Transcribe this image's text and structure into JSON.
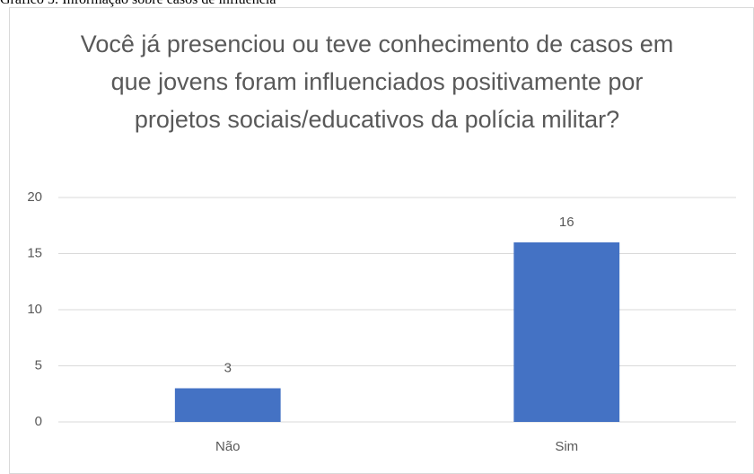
{
  "caption": "Gráfico 5: Informação sobre casos de influência",
  "chart_data": {
    "type": "bar",
    "title": "Você já presenciou ou teve conhecimento de casos em que jovens foram influenciados positivamente por projetos sociais/educativos da polícia militar?",
    "categories": [
      "Não",
      "Sim"
    ],
    "values": [
      3,
      16
    ],
    "color": "#4472c4",
    "ylim": [
      0,
      20
    ],
    "yticks": [
      0,
      5,
      10,
      15,
      20
    ],
    "grid": true,
    "data_labels": true
  }
}
